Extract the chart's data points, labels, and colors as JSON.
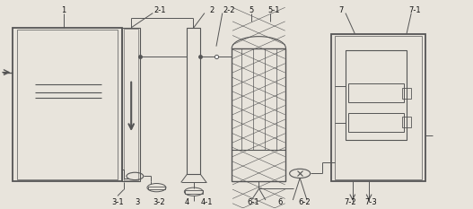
{
  "bg_color": "#e8e4dc",
  "line_color": "#555555",
  "label_color": "#111111",
  "fig_w": 5.27,
  "fig_h": 2.33,
  "dpi": 100
}
